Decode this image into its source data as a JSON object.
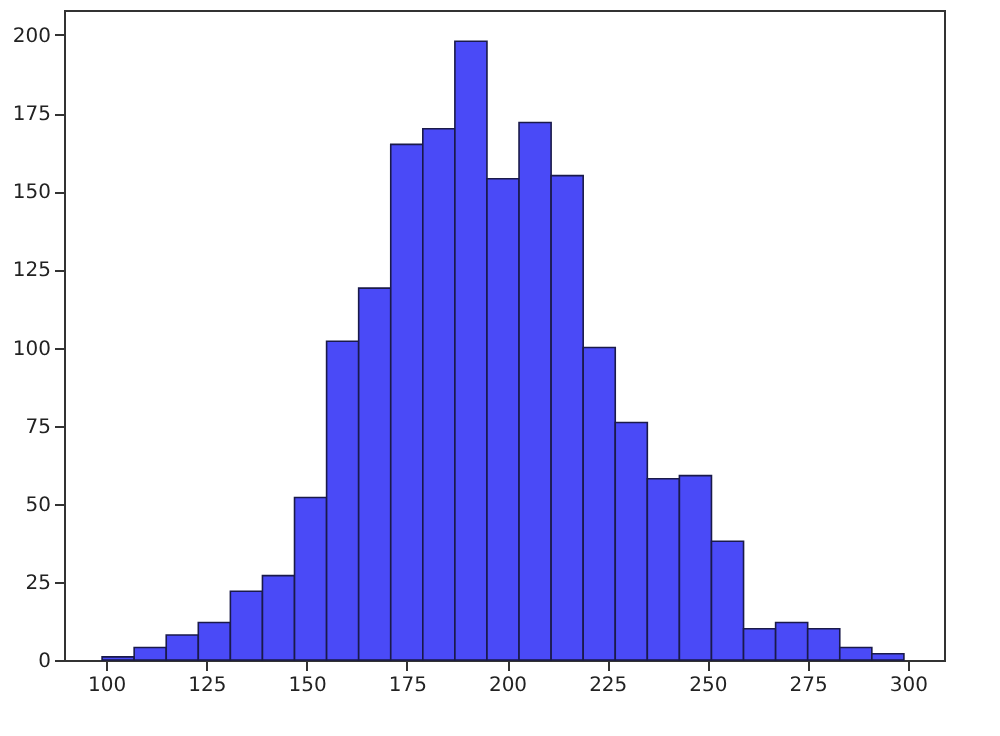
{
  "chart_data": {
    "type": "histogram",
    "bins": [
      99,
      107,
      115,
      123,
      131,
      139,
      147,
      155,
      163,
      171,
      179,
      187,
      195,
      203,
      211,
      219,
      227,
      235,
      243,
      251,
      259,
      267,
      275,
      283,
      291,
      299
    ],
    "values": [
      1,
      4,
      8,
      12,
      22,
      27,
      52,
      102,
      119,
      165,
      170,
      198,
      154,
      172,
      155,
      100,
      76,
      58,
      59,
      38,
      10,
      12,
      10,
      4,
      2
    ],
    "color": "#4a4af7",
    "xlim": [
      89.5,
      309
    ],
    "xticks": [
      100,
      125,
      150,
      175,
      200,
      225,
      250,
      275,
      300
    ],
    "ylim": [
      0,
      208
    ],
    "yticks": [
      0,
      25,
      50,
      75,
      100,
      125,
      150,
      175,
      200
    ],
    "grid": false
  }
}
